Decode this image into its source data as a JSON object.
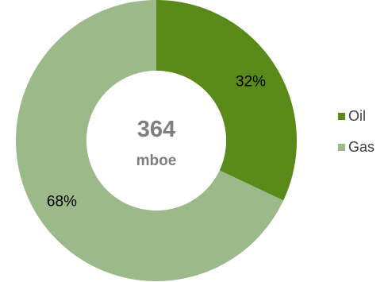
{
  "chart_data": {
    "type": "pie",
    "style": "donut",
    "center_value": "364",
    "center_unit": "mboe",
    "slices": [
      {
        "name": "Oil",
        "value": 32,
        "label": "32%",
        "color": "#5a8a1a"
      },
      {
        "name": "Gas",
        "value": 68,
        "label": "68%",
        "color": "#9cb98a"
      }
    ],
    "legend_position": "right",
    "start_angle_deg": 0,
    "direction": "clockwise"
  }
}
